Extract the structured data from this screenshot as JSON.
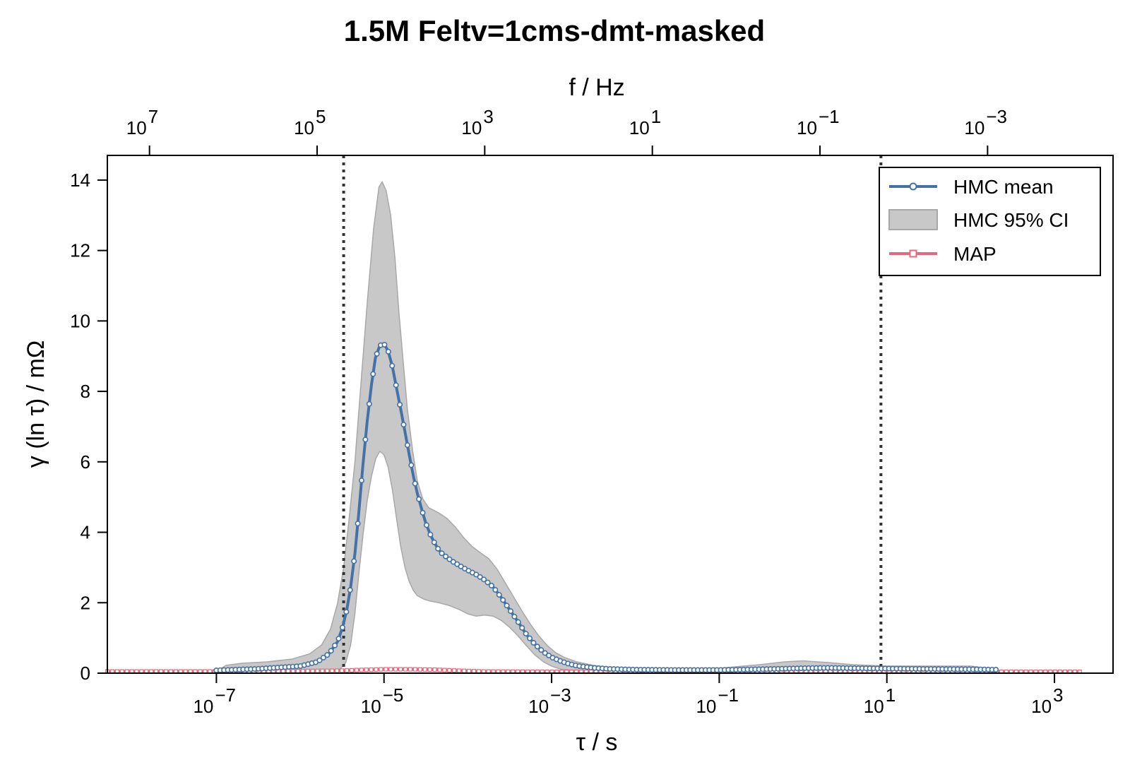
{
  "chart_data": {
    "type": "line",
    "title": "1.5M Feltv=1cms-dmt-masked",
    "xlabel": "τ / s",
    "ylabel": "γ (ln τ) / mΩ",
    "top_xlabel": "f / Hz",
    "x_scale": "log",
    "top_x_scale": "log (reversed)",
    "xlim": [
      5e-09,
      5000
    ],
    "ylim": [
      0,
      14.7
    ],
    "grid": false,
    "legend_position": "top-right",
    "x_ticks": [
      {
        "value": 1e-07,
        "base": "10",
        "exp": "−7"
      },
      {
        "value": 1e-05,
        "base": "10",
        "exp": "−5"
      },
      {
        "value": 0.001,
        "base": "10",
        "exp": "−3"
      },
      {
        "value": 0.1,
        "base": "10",
        "exp": "−1"
      },
      {
        "value": 10,
        "base": "10",
        "exp": "1"
      },
      {
        "value": 1000,
        "base": "10",
        "exp": "3"
      }
    ],
    "top_ticks": [
      {
        "value": 10000000.0,
        "base": "10",
        "exp": "7"
      },
      {
        "value": 100000.0,
        "base": "10",
        "exp": "5"
      },
      {
        "value": 1000.0,
        "base": "10",
        "exp": "3"
      },
      {
        "value": 10,
        "base": "10",
        "exp": "1"
      },
      {
        "value": 0.1,
        "base": "10",
        "exp": "−1"
      },
      {
        "value": 0.001,
        "base": "10",
        "exp": "−3"
      }
    ],
    "y_ticks": [
      0,
      2,
      4,
      6,
      8,
      10,
      12,
      14
    ],
    "vlines": [
      {
        "x": 3.3e-06,
        "style": "dotted"
      },
      {
        "x": 8.5,
        "style": "dotted"
      }
    ],
    "colors": {
      "hmc_mean": "#4472a6",
      "ci_fill": "#c8c8c8",
      "ci_edge": "#a8a8a8",
      "map": "#e8677b",
      "vline": "#333333"
    },
    "series": [
      {
        "name": "HMC mean",
        "kind": "line-markers",
        "points": [
          [
            1e-07,
            0.08
          ],
          [
            3e-07,
            0.12
          ],
          [
            1e-06,
            0.2
          ],
          [
            1.6e-06,
            0.32
          ],
          [
            2.2e-06,
            0.55
          ],
          [
            2.8e-06,
            0.9
          ],
          [
            3.2e-06,
            1.3
          ],
          [
            3.6e-06,
            1.8
          ],
          [
            4e-06,
            2.45
          ],
          [
            4.5e-06,
            3.4
          ],
          [
            5e-06,
            4.55
          ],
          [
            5.6e-06,
            5.9
          ],
          [
            6.3e-06,
            7.15
          ],
          [
            7.1e-06,
            8.2
          ],
          [
            7.9e-06,
            8.95
          ],
          [
            8.9e-06,
            9.3
          ],
          [
            1e-05,
            9.35
          ],
          [
            1.12e-05,
            9.15
          ],
          [
            1.26e-05,
            8.7
          ],
          [
            1.41e-05,
            8.1
          ],
          [
            1.58e-05,
            7.5
          ],
          [
            1.78e-05,
            6.85
          ],
          [
            2e-05,
            6.2
          ],
          [
            2.24e-05,
            5.6
          ],
          [
            2.5e-05,
            5.1
          ],
          [
            2.82e-05,
            4.65
          ],
          [
            3.16e-05,
            4.25
          ],
          [
            3.55e-05,
            3.95
          ],
          [
            4e-05,
            3.7
          ],
          [
            4.5e-05,
            3.5
          ],
          [
            5e-05,
            3.38
          ],
          [
            6.3e-05,
            3.2
          ],
          [
            8e-05,
            3.05
          ],
          [
            0.0001,
            2.92
          ],
          [
            0.000126,
            2.8
          ],
          [
            0.000158,
            2.65
          ],
          [
            0.0002,
            2.45
          ],
          [
            0.00025,
            2.15
          ],
          [
            0.000316,
            1.8
          ],
          [
            0.0004,
            1.45
          ],
          [
            0.0005,
            1.1
          ],
          [
            0.00063,
            0.82
          ],
          [
            0.0008,
            0.6
          ],
          [
            0.001,
            0.45
          ],
          [
            0.00126,
            0.35
          ],
          [
            0.00158,
            0.27
          ],
          [
            0.002,
            0.21
          ],
          [
            0.00316,
            0.15
          ],
          [
            0.005,
            0.12
          ],
          [
            0.01,
            0.1
          ],
          [
            0.03,
            0.09
          ],
          [
            0.1,
            0.09
          ],
          [
            0.3,
            0.11
          ],
          [
            1,
            0.14
          ],
          [
            2,
            0.15
          ],
          [
            4,
            0.14
          ],
          [
            10,
            0.13
          ],
          [
            30,
            0.12
          ],
          [
            100,
            0.11
          ],
          [
            200,
            0.1
          ]
        ]
      },
      {
        "name": "HMC 95% CI",
        "kind": "band",
        "upper": [
          [
            1e-07,
            0.05
          ],
          [
            1.3e-07,
            0.22
          ],
          [
            2e-07,
            0.28
          ],
          [
            4e-07,
            0.32
          ],
          [
            8e-07,
            0.4
          ],
          [
            1.3e-06,
            0.55
          ],
          [
            1.8e-06,
            0.8
          ],
          [
            2.3e-06,
            1.25
          ],
          [
            2.8e-06,
            2.0
          ],
          [
            3.3e-06,
            3.0
          ],
          [
            3.8e-06,
            4.3
          ],
          [
            4.5e-06,
            6.0
          ],
          [
            5.3e-06,
            8.2
          ],
          [
            6.3e-06,
            10.5
          ],
          [
            7.5e-06,
            12.6
          ],
          [
            8.7e-06,
            13.8
          ],
          [
            9.5e-06,
            13.95
          ],
          [
            1.06e-05,
            13.7
          ],
          [
            1.2e-05,
            13.0
          ],
          [
            1.35e-05,
            11.8
          ],
          [
            1.5e-05,
            10.3
          ],
          [
            1.7e-05,
            8.8
          ],
          [
            1.9e-05,
            7.5
          ],
          [
            2.2e-05,
            6.3
          ],
          [
            2.5e-05,
            5.45
          ],
          [
            2.9e-05,
            4.95
          ],
          [
            3.4e-05,
            4.7
          ],
          [
            4.5e-05,
            4.55
          ],
          [
            5.6e-05,
            4.4
          ],
          [
            7.1e-05,
            4.15
          ],
          [
            8.9e-05,
            3.85
          ],
          [
            0.000112,
            3.6
          ],
          [
            0.000141,
            3.42
          ],
          [
            0.000178,
            3.25
          ],
          [
            0.000224,
            2.95
          ],
          [
            0.000282,
            2.55
          ],
          [
            0.000355,
            2.15
          ],
          [
            0.000447,
            1.75
          ],
          [
            0.000562,
            1.38
          ],
          [
            0.000708,
            1.05
          ],
          [
            0.000891,
            0.78
          ],
          [
            0.00112,
            0.58
          ],
          [
            0.00141,
            0.45
          ],
          [
            0.002,
            0.32
          ],
          [
            0.00316,
            0.22
          ],
          [
            0.005,
            0.16
          ],
          [
            0.01,
            0.13
          ],
          [
            0.03,
            0.12
          ],
          [
            0.1,
            0.14
          ],
          [
            0.3,
            0.24
          ],
          [
            0.6,
            0.32
          ],
          [
            1,
            0.35
          ],
          [
            2,
            0.3
          ],
          [
            4,
            0.24
          ],
          [
            10,
            0.2
          ],
          [
            30,
            0.2
          ],
          [
            100,
            0.2
          ],
          [
            150,
            0.15
          ],
          [
            200,
            0.05
          ]
        ],
        "lower": [
          [
            1e-07,
            0.0
          ],
          [
            1e-06,
            0.02
          ],
          [
            2e-06,
            0.05
          ],
          [
            3e-06,
            0.12
          ],
          [
            3.5e-06,
            0.3
          ],
          [
            4e-06,
            0.8
          ],
          [
            4.5e-06,
            1.7
          ],
          [
            5e-06,
            2.8
          ],
          [
            5.6e-06,
            3.9
          ],
          [
            6.3e-06,
            4.9
          ],
          [
            7.1e-06,
            5.6
          ],
          [
            8e-06,
            6.1
          ],
          [
            8.9e-06,
            6.3
          ],
          [
            1e-05,
            6.2
          ],
          [
            1.12e-05,
            5.85
          ],
          [
            1.26e-05,
            5.2
          ],
          [
            1.41e-05,
            4.4
          ],
          [
            1.58e-05,
            3.6
          ],
          [
            1.78e-05,
            3.0
          ],
          [
            2e-05,
            2.6
          ],
          [
            2.24e-05,
            2.35
          ],
          [
            2.5e-05,
            2.2
          ],
          [
            3e-05,
            2.1
          ],
          [
            3.5e-05,
            2.05
          ],
          [
            4.5e-05,
            2.0
          ],
          [
            6e-05,
            1.92
          ],
          [
            8e-05,
            1.8
          ],
          [
            0.0001,
            1.68
          ],
          [
            0.000126,
            1.62
          ],
          [
            0.000158,
            1.65
          ],
          [
            0.0002,
            1.62
          ],
          [
            0.00025,
            1.5
          ],
          [
            0.000316,
            1.3
          ],
          [
            0.0004,
            1.05
          ],
          [
            0.0005,
            0.78
          ],
          [
            0.00063,
            0.52
          ],
          [
            0.0008,
            0.32
          ],
          [
            0.001,
            0.2
          ],
          [
            0.00126,
            0.12
          ],
          [
            0.002,
            0.06
          ],
          [
            0.005,
            0.03
          ],
          [
            0.01,
            0.02
          ],
          [
            1,
            0.02
          ],
          [
            200,
            0.0
          ]
        ]
      },
      {
        "name": "MAP",
        "kind": "line-markers",
        "points": [
          [
            5e-09,
            0.05
          ],
          [
            1e-07,
            0.05
          ],
          [
            1e-06,
            0.06
          ],
          [
            3e-06,
            0.07
          ],
          [
            5e-06,
            0.09
          ],
          [
            1e-05,
            0.11
          ],
          [
            2e-05,
            0.11
          ],
          [
            4e-05,
            0.1
          ],
          [
            8e-05,
            0.07
          ],
          [
            0.00015,
            0.05
          ],
          [
            0.001,
            0.04
          ],
          [
            0.01,
            0.04
          ],
          [
            1,
            0.04
          ],
          [
            100,
            0.04
          ],
          [
            2000,
            0.04
          ]
        ]
      }
    ]
  }
}
